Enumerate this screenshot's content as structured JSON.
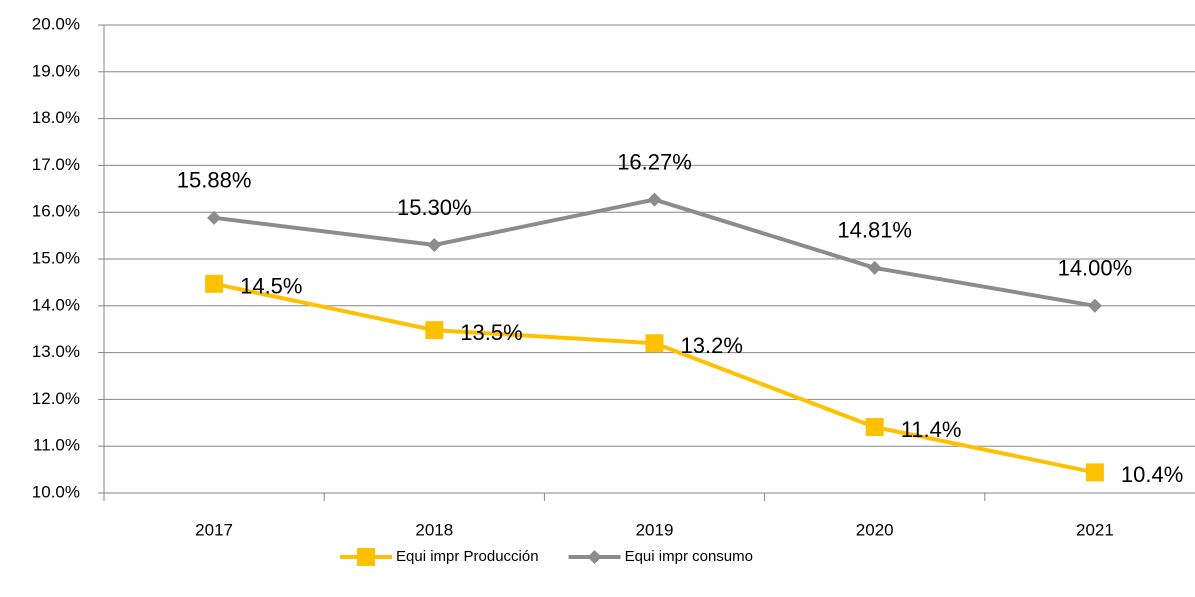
{
  "chart_data": {
    "type": "line",
    "categories": [
      "2017",
      "2018",
      "2019",
      "2020",
      "2021"
    ],
    "series": [
      {
        "name": "Equi impr Producción",
        "color": "#ffc000",
        "marker": "square",
        "values": [
          14.47,
          13.48,
          13.2,
          11.41,
          10.44
        ],
        "value_labels": [
          "14.5%",
          "13.5%",
          "13.2%",
          "11.4%",
          "10.4%"
        ]
      },
      {
        "name": "Equi impr consumo",
        "color": "#8c8c8c",
        "marker": "diamond",
        "values": [
          15.88,
          15.3,
          16.27,
          14.81,
          14.0
        ],
        "value_labels": [
          "15.88%",
          "15.30%",
          "16.27%",
          "14.81%",
          "14.00%"
        ]
      }
    ],
    "ylim": [
      10,
      20
    ],
    "yticks": [
      {
        "value": 10,
        "label": "10.0%"
      },
      {
        "value": 11,
        "label": "11.0%"
      },
      {
        "value": 12,
        "label": "12.0%"
      },
      {
        "value": 13,
        "label": "13.0%"
      },
      {
        "value": 14,
        "label": "14.0%"
      },
      {
        "value": 15,
        "label": "15.0%"
      },
      {
        "value": 16,
        "label": "16.0%"
      },
      {
        "value": 17,
        "label": "17.0%"
      },
      {
        "value": 18,
        "label": "18.0%"
      },
      {
        "value": 19,
        "label": "19.0%"
      },
      {
        "value": 20,
        "label": "20.0%"
      }
    ],
    "grid": true,
    "legend": "bottom"
  }
}
